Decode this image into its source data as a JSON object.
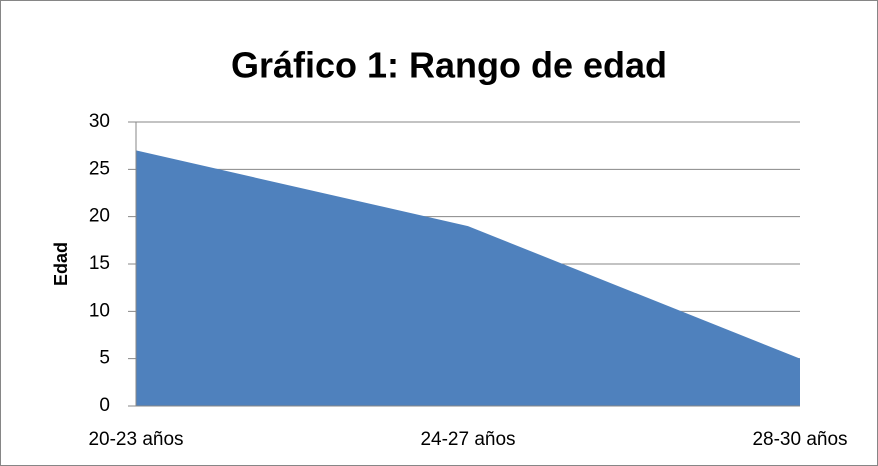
{
  "chart_data": {
    "type": "area",
    "title": "Gráfico 1: Rango de edad",
    "y_label": "Edad",
    "categories": [
      "20-23 años",
      "24-27 años",
      "28-30 años"
    ],
    "values": [
      27,
      19,
      5
    ],
    "color": "#4f81bd",
    "ylim": [
      0,
      30
    ],
    "yticks": [
      0,
      5,
      10,
      15,
      20,
      25,
      30
    ],
    "grid": true
  }
}
